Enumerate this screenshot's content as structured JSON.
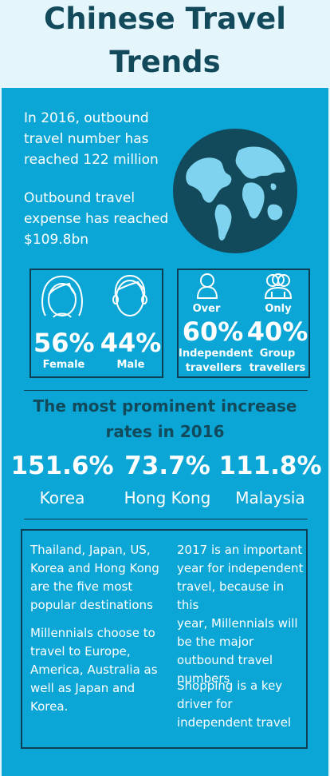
{
  "header": {
    "title_line1": "Chinese Travel",
    "title_line2": "Trends"
  },
  "intro": {
    "outbound_number_text": "In 2016, outbound\ntravel number has\nreached 122 million",
    "expense_text": "Outbound travel\nexpense has reached\n$109.8bn"
  },
  "gender": {
    "female_pct": "56%",
    "female_label": "Female",
    "male_pct": "44%",
    "male_label": "Male"
  },
  "travel_type": {
    "independent_prefix": "Over",
    "independent_pct": "60%",
    "independent_label": "Independent\ntravellers",
    "group_prefix": "Only",
    "group_pct": "40%",
    "group_label": "Group\ntravellers"
  },
  "increase": {
    "title_line1": "The most prominent increase",
    "title_line2": "rates in 2016",
    "items": [
      {
        "rate": "151.6%",
        "country": "Korea"
      },
      {
        "rate": "73.7%",
        "country": "Hong Kong"
      },
      {
        "rate": "111.8%",
        "country": "Malaysia"
      }
    ]
  },
  "notes": {
    "left_1": "Thailand, Japan, US,\nKorea and Hong Kong\nare the five most\npopular destinations",
    "left_2": "Millennials choose to\ntravel to Europe,\nAmerica, Australia as\nwell as Japan and\nKorea.",
    "right_1": "2017 is an important\nyear for independent\ntravel, because in this\nyear, Millennials will\nbe the major\noutbound travel\nnumbers",
    "right_2": "Shopping is a key\ndriver for\nindependent travel"
  },
  "colors": {
    "panel": "#0ba6d6",
    "header_bg": "#e4f5fb",
    "title": "#124a5c",
    "globe_ocean": "#124a5c",
    "globe_land": "#7fd3ee"
  },
  "icons": [
    "globe-icon",
    "female-face-icon",
    "male-face-icon",
    "single-person-icon",
    "group-people-icon"
  ]
}
